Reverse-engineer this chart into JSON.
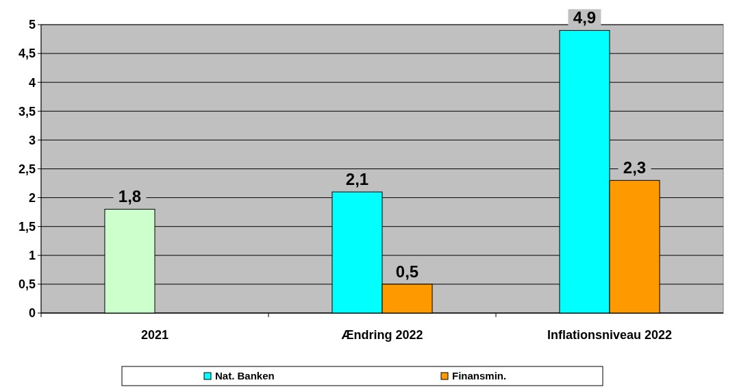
{
  "chart_data": {
    "type": "bar",
    "categories": [
      "2021",
      "Ændring 2022",
      "Inflationsniveau 2022"
    ],
    "series": [
      {
        "name": "Nat. Banken",
        "color": "#00ffff",
        "colors": [
          "#ccffcc",
          "#00ffff",
          "#00ffff"
        ],
        "values": [
          1.8,
          2.1,
          4.9
        ],
        "value_labels": [
          "1,8",
          "2,1",
          "4,9"
        ]
      },
      {
        "name": "Finansmin.",
        "color": "#ff9900",
        "values": [
          null,
          0.5,
          2.3
        ],
        "value_labels": [
          null,
          "0,5",
          "2,3"
        ]
      }
    ],
    "ylim": [
      0,
      5
    ],
    "yticks": [
      0,
      {
        "value": 0.5,
        "label": "0,5"
      },
      1,
      {
        "value": 1.5,
        "label": "1,5"
      },
      2,
      {
        "value": 2.5,
        "label": "2,5"
      },
      3,
      {
        "value": 3.5,
        "label": "3,5"
      },
      4,
      {
        "value": 4.5,
        "label": "4,5"
      },
      5
    ],
    "grid": "y",
    "legend": "bottom"
  }
}
